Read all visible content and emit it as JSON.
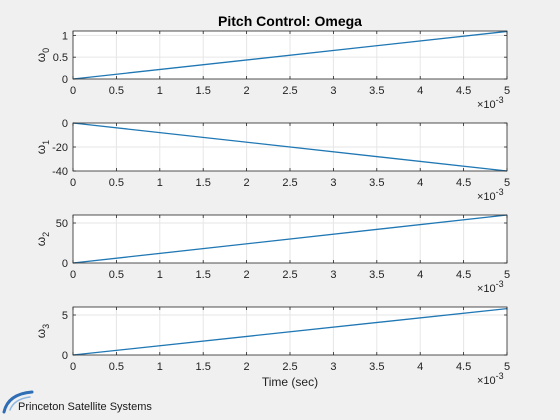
{
  "figure": {
    "brand": "Princeton Satellite Systems"
  },
  "chart_data": {
    "type": "line",
    "title": "Pitch Control: Omega",
    "xlabel": "Time (sec)",
    "x_multiplier_base": "×10",
    "x_multiplier_exponent": "-3",
    "x_ticks": [
      "0",
      "0.5",
      "1",
      "1.5",
      "2",
      "2.5",
      "3",
      "3.5",
      "4",
      "4.5",
      "5"
    ],
    "xlim": [
      0,
      0.005
    ],
    "grid": true,
    "line_color": "#1f77b4",
    "subplots": [
      {
        "ylabel_base": "ω",
        "ylabel_sub": "0",
        "ylim": [
          0,
          1.1
        ],
        "y_ticks": [
          {
            "v": 0,
            "label": "0"
          },
          {
            "v": 0.5,
            "label": "0.5"
          },
          {
            "v": 1,
            "label": "1"
          }
        ],
        "x": [
          0,
          0.005
        ],
        "y": [
          0,
          1.09
        ]
      },
      {
        "ylabel_base": "ω",
        "ylabel_sub": "1",
        "ylim": [
          -40,
          0
        ],
        "y_ticks": [
          {
            "v": 0,
            "label": "0"
          },
          {
            "v": -20,
            "label": "-20"
          },
          {
            "v": -40,
            "label": "-40"
          }
        ],
        "x": [
          0,
          0.005
        ],
        "y": [
          0,
          -40
        ]
      },
      {
        "ylabel_base": "ω",
        "ylabel_sub": "2",
        "ylim": [
          0,
          60
        ],
        "y_ticks": [
          {
            "v": 0,
            "label": "0"
          },
          {
            "v": 50,
            "label": "50"
          }
        ],
        "x": [
          0,
          0.005
        ],
        "y": [
          0,
          60
        ]
      },
      {
        "ylabel_base": "ω",
        "ylabel_sub": "3",
        "ylim": [
          0,
          6
        ],
        "y_ticks": [
          {
            "v": 0,
            "label": "0"
          },
          {
            "v": 5,
            "label": "5"
          }
        ],
        "x": [
          0,
          0.005
        ],
        "y": [
          0,
          5.8
        ]
      }
    ]
  }
}
